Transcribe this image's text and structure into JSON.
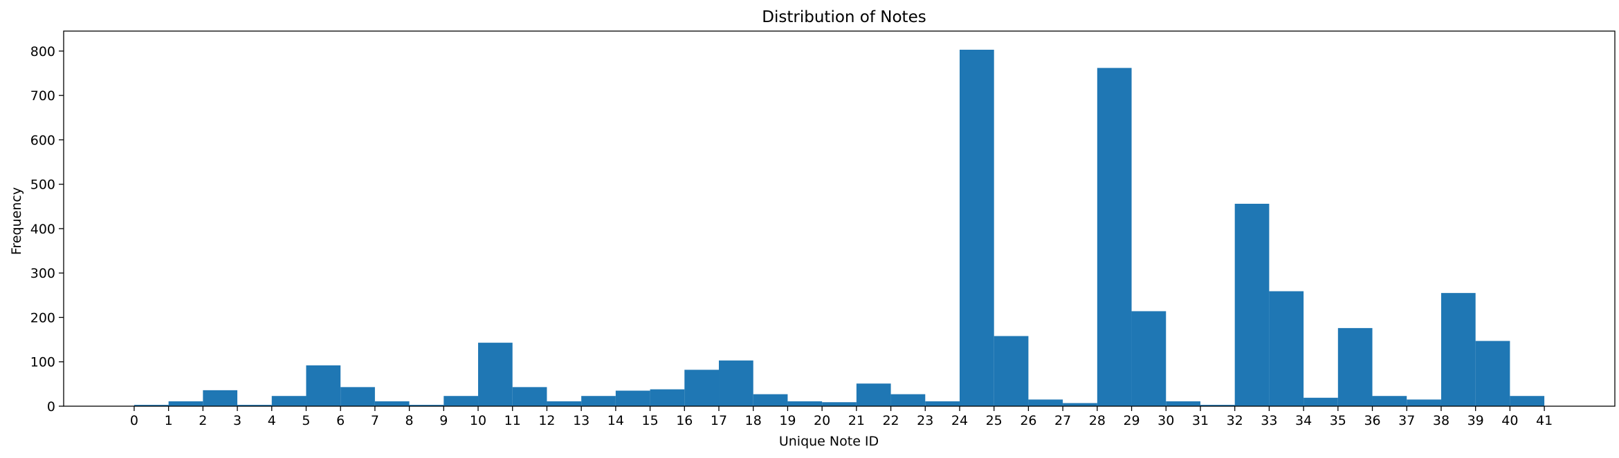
{
  "chart_data": {
    "type": "bar",
    "title": "Distribution of Notes",
    "xlabel": "Unique Note ID",
    "ylabel": "Frequency",
    "x_ticks": [
      "0",
      "1",
      "2",
      "3",
      "4",
      "5",
      "6",
      "7",
      "8",
      "9",
      "10",
      "11",
      "12",
      "13",
      "14",
      "15",
      "16",
      "17",
      "18",
      "19",
      "20",
      "21",
      "22",
      "23",
      "24",
      "25",
      "26",
      "27",
      "28",
      "29",
      "30",
      "31",
      "32",
      "33",
      "34",
      "35",
      "36",
      "37",
      "38",
      "39",
      "40",
      "41"
    ],
    "y_ticks": [
      0,
      100,
      200,
      300,
      400,
      500,
      600,
      700,
      800
    ],
    "xlim": [
      -2.05,
      43.05
    ],
    "ylim": [
      0,
      845
    ],
    "bin_edges": [
      0,
      1,
      2,
      3,
      4,
      5,
      6,
      7,
      8,
      9,
      10,
      11,
      12,
      13,
      14,
      15,
      16,
      17,
      18,
      19,
      20,
      21,
      22,
      23,
      24,
      25,
      26,
      27,
      28,
      29,
      30,
      31,
      32,
      33,
      34,
      35,
      36,
      37,
      38,
      39,
      40,
      41
    ],
    "values": [
      3,
      11,
      36,
      3,
      23,
      92,
      43,
      11,
      3,
      23,
      143,
      43,
      11,
      23,
      35,
      38,
      82,
      103,
      27,
      11,
      9,
      51,
      27,
      11,
      803,
      158,
      15,
      7,
      762,
      214,
      11,
      3,
      456,
      259,
      19,
      176,
      23,
      15,
      255,
      147,
      23
    ],
    "color": "#1f77b4",
    "grid": false
  }
}
